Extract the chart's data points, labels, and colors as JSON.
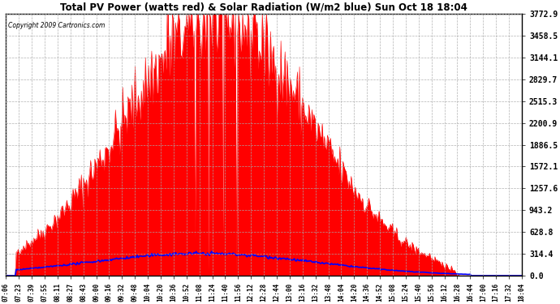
{
  "title": "Total PV Power (watts red) & Solar Radiation (W/m2 blue) Sun Oct 18 18:04",
  "copyright": "Copyright 2009 Cartronics.com",
  "bg_color": "#ffffff",
  "plot_bg_color": "#ffffff",
  "title_color": "#000000",
  "grid_color": "#aaaaaa",
  "red_color": "#ff0000",
  "blue_color": "#0000ff",
  "ytick_color": "#000000",
  "ymax": 3772.9,
  "ymin": 0.0,
  "yticks": [
    0.0,
    314.4,
    628.8,
    943.2,
    1257.6,
    1572.1,
    1886.5,
    2200.9,
    2515.3,
    2829.7,
    3144.1,
    3458.5,
    3772.9
  ],
  "xtick_labels": [
    "07:06",
    "07:23",
    "07:39",
    "07:55",
    "08:11",
    "08:27",
    "08:43",
    "09:00",
    "09:16",
    "09:32",
    "09:48",
    "10:04",
    "10:20",
    "10:36",
    "10:52",
    "11:08",
    "11:24",
    "11:40",
    "11:56",
    "12:12",
    "12:28",
    "12:44",
    "13:00",
    "13:16",
    "13:32",
    "13:48",
    "14:04",
    "14:20",
    "14:36",
    "14:52",
    "15:08",
    "15:24",
    "15:40",
    "15:56",
    "16:12",
    "16:28",
    "16:44",
    "17:00",
    "17:16",
    "17:32",
    "18:04"
  ],
  "n_points": 500,
  "solar_scale": 1.6
}
